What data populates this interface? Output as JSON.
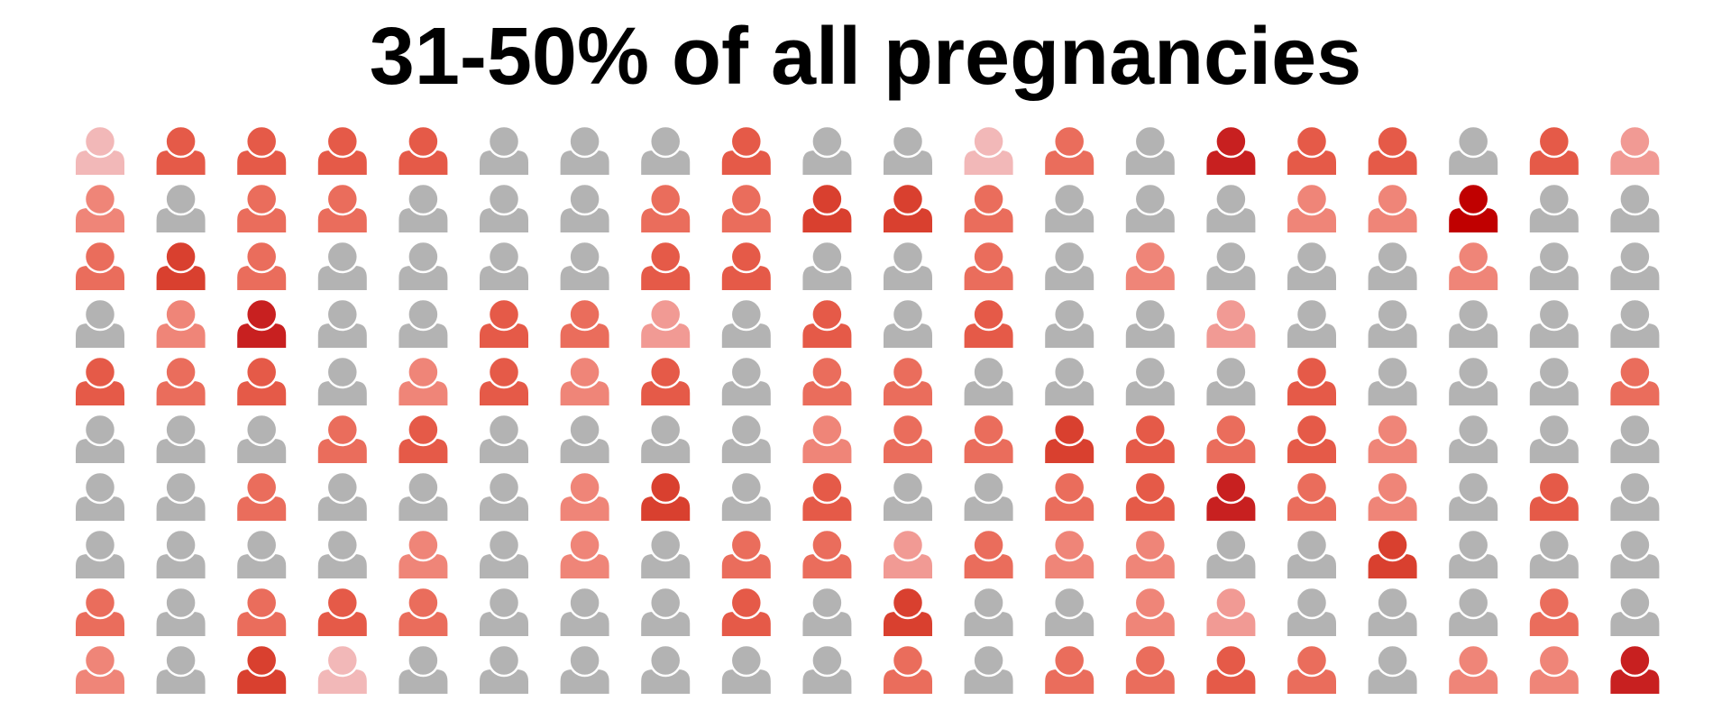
{
  "chart_data": {
    "type": "isotype",
    "title": "31-50% of all pregnancies",
    "rows": 10,
    "columns": 20,
    "base_color": "#b3b3b3",
    "palette": {
      "0": "#b3b3b3",
      "1": "#f2b8b8",
      "2": "#f19a94",
      "3": "#ef8578",
      "4": "#ea6d5c",
      "5": "#e55a48",
      "6": "#d9402f",
      "7": "#c82020",
      "8": "#c00000"
    },
    "grid": [
      [
        1,
        5,
        5,
        5,
        5,
        0,
        0,
        0,
        5,
        0,
        0,
        1,
        4,
        0,
        7,
        5,
        5,
        0,
        5,
        2
      ],
      [
        3,
        0,
        4,
        4,
        0,
        0,
        0,
        4,
        4,
        6,
        6,
        4,
        0,
        0,
        0,
        3,
        3,
        8,
        0,
        0
      ],
      [
        4,
        6,
        4,
        0,
        0,
        0,
        0,
        5,
        5,
        0,
        0,
        4,
        0,
        3,
        0,
        0,
        0,
        3,
        0,
        0
      ],
      [
        0,
        3,
        7,
        0,
        0,
        5,
        4,
        2,
        0,
        5,
        0,
        5,
        0,
        0,
        2,
        0,
        0,
        0,
        0,
        0
      ],
      [
        5,
        4,
        5,
        0,
        3,
        5,
        3,
        5,
        0,
        4,
        4,
        0,
        0,
        0,
        0,
        5,
        0,
        0,
        0,
        4
      ],
      [
        0,
        0,
        0,
        4,
        5,
        0,
        0,
        0,
        0,
        3,
        4,
        4,
        6,
        5,
        4,
        5,
        3,
        0,
        0,
        0
      ],
      [
        0,
        0,
        4,
        0,
        0,
        0,
        3,
        6,
        0,
        5,
        0,
        0,
        4,
        5,
        7,
        4,
        3,
        0,
        5,
        0
      ],
      [
        0,
        0,
        0,
        0,
        3,
        0,
        3,
        0,
        4,
        4,
        2,
        4,
        3,
        3,
        0,
        0,
        6,
        0,
        0,
        0
      ],
      [
        4,
        0,
        4,
        5,
        4,
        0,
        0,
        0,
        5,
        0,
        6,
        0,
        0,
        3,
        2,
        0,
        0,
        0,
        4,
        0
      ],
      [
        3,
        0,
        6,
        1,
        0,
        0,
        0,
        0,
        0,
        0,
        4,
        0,
        4,
        4,
        5,
        4,
        0,
        3,
        3,
        7
      ]
    ]
  }
}
